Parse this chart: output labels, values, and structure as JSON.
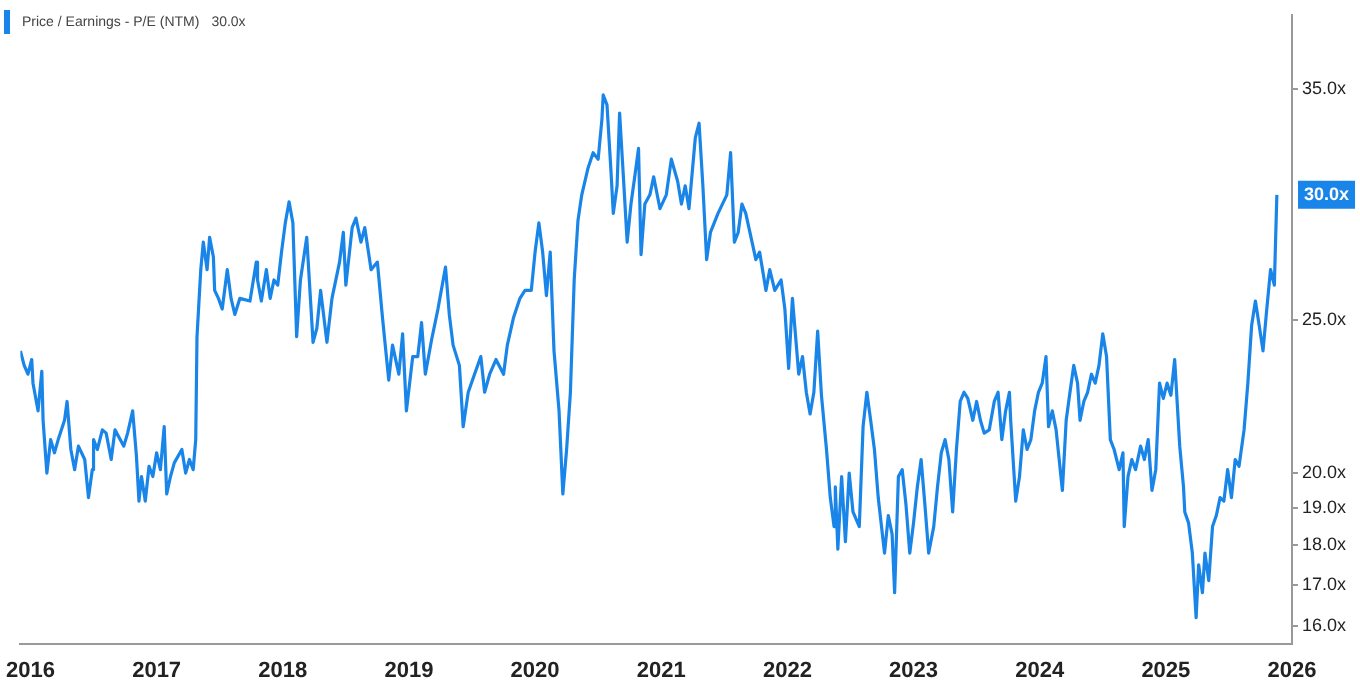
{
  "chart_data": {
    "type": "line",
    "legend": "top left",
    "log": "y",
    "grid": false,
    "xlim": [
      2015.92,
      2026
    ],
    "xticks": [
      2016,
      2017,
      2018,
      2019,
      2020,
      2021,
      2022,
      2023,
      2024,
      2025,
      2026
    ],
    "ylim": [
      15.6,
      39
    ],
    "yticks": [
      {
        "value": 16,
        "label": "16.0x"
      },
      {
        "value": 17,
        "label": "17.0x"
      },
      {
        "value": 18,
        "label": "18.0x"
      },
      {
        "value": 19,
        "label": "19.0x"
      },
      {
        "value": 20,
        "label": "20.0x"
      },
      {
        "value": 25,
        "label": "25.0x"
      },
      {
        "value": 35,
        "label": "35.0x"
      }
    ],
    "annotations": [
      "30.0x",
      {
        "text": "30.0x",
        "y": 30.0
      }
    ],
    "series": [
      {
        "name": "Price / Earnings - P/E (NTM)",
        "color": "#1a85e8",
        "x": [
          2015.92,
          2015.95,
          2015.98,
          2016.01,
          2016.02,
          2016.06,
          2016.09,
          2016.1,
          2016.13,
          2016.16,
          2016.19,
          2016.22,
          2016.27,
          2016.29,
          2016.32,
          2016.35,
          2016.38,
          2016.43,
          2016.46,
          2016.49,
          2016.5,
          2016.53,
          2016.57,
          2016.6,
          2016.64,
          2016.67,
          2016.74,
          2016.77,
          2016.81,
          2016.84,
          2016.86,
          2016.88,
          2016.91,
          2016.94,
          2016.97,
          2017.0,
          2017.03,
          2017.06,
          2017.08,
          2017.11,
          2017.14,
          2017.2,
          2017.23,
          2017.26,
          2017.29,
          2017.31,
          2017.32,
          2017.35,
          2017.37,
          2017.4,
          2017.42,
          2017.45,
          2017.46,
          2017.49,
          2017.52,
          2017.56,
          2017.59,
          2017.62,
          2017.66,
          2017.74,
          2017.79,
          2017.8,
          2017.83,
          2017.87,
          2017.9,
          2017.93,
          2017.96,
          2017.99,
          2018.02,
          2018.05,
          2018.08,
          2018.11,
          2018.14,
          2018.19,
          2018.24,
          2018.27,
          2018.3,
          2018.35,
          2018.39,
          2018.45,
          2018.48,
          2018.5,
          2018.55,
          2018.58,
          2018.62,
          2018.65,
          2018.7,
          2018.75,
          2018.79,
          2018.84,
          2018.87,
          2018.92,
          2018.95,
          2018.98,
          2019.03,
          2019.07,
          2019.1,
          2019.13,
          2019.18,
          2019.23,
          2019.29,
          2019.32,
          2019.35,
          2019.4,
          2019.43,
          2019.47,
          2019.52,
          2019.57,
          2019.6,
          2019.64,
          2019.69,
          2019.75,
          2019.78,
          2019.83,
          2019.88,
          2019.92,
          2019.97,
          2020.0,
          2020.03,
          2020.06,
          2020.09,
          2020.12,
          2020.15,
          2020.19,
          2020.22,
          2020.25,
          2020.28,
          2020.31,
          2020.34,
          2020.37,
          2020.42,
          2020.46,
          2020.5,
          2020.53,
          2020.54,
          2020.57,
          2020.6,
          2020.62,
          2020.65,
          2020.67,
          2020.7,
          2020.73,
          2020.76,
          2020.79,
          2020.82,
          2020.84,
          2020.87,
          2020.91,
          2020.94,
          2020.99,
          2021.04,
          2021.08,
          2021.13,
          2021.16,
          2021.19,
          2021.22,
          2021.27,
          2021.3,
          2021.33,
          2021.36,
          2021.39,
          2021.45,
          2021.52,
          2021.55,
          2021.58,
          2021.61,
          2021.64,
          2021.67,
          2021.72,
          2021.75,
          2021.78,
          2021.83,
          2021.86,
          2021.9,
          2021.95,
          2021.98,
          2022.01,
          2022.04,
          2022.09,
          2022.12,
          2022.15,
          2022.18,
          2022.21,
          2022.24,
          2022.27,
          2022.31,
          2022.34,
          2022.37,
          2022.38,
          2022.4,
          2022.43,
          2022.46,
          2022.49,
          2022.52,
          2022.57,
          2022.6,
          2022.63,
          2022.66,
          2022.69,
          2022.72,
          2022.77,
          2022.8,
          2022.83,
          2022.85,
          2022.88,
          2022.91,
          2022.94,
          2022.97,
          2023.0,
          2023.03,
          2023.06,
          2023.09,
          2023.12,
          2023.16,
          2023.19,
          2023.22,
          2023.25,
          2023.28,
          2023.31,
          2023.34,
          2023.37,
          2023.4,
          2023.43,
          2023.47,
          2023.5,
          2023.53,
          2023.56,
          2023.6,
          2023.64,
          2023.67,
          2023.7,
          2023.73,
          2023.76,
          2023.77,
          2023.81,
          2023.84,
          2023.87,
          2023.9,
          2023.93,
          2023.96,
          2023.99,
          2024.02,
          2024.05,
          2024.07,
          2024.1,
          2024.13,
          2024.18,
          2024.21,
          2024.24,
          2024.27,
          2024.3,
          2024.32,
          2024.35,
          2024.38,
          2024.41,
          2024.44,
          2024.47,
          2024.5,
          2024.53,
          2024.56,
          2024.59,
          2024.63,
          2024.66,
          2024.67,
          2024.7,
          2024.73,
          2024.76,
          2024.8,
          2024.83,
          2024.86,
          2024.89,
          2024.92,
          2024.95,
          2024.98,
          2025.01,
          2025.04,
          2025.07,
          2025.11,
          2025.14,
          2025.15,
          2025.18,
          2025.21,
          2025.24,
          2025.26,
          2025.29,
          2025.31,
          2025.34,
          2025.37,
          2025.4,
          2025.43,
          2025.46,
          2025.49,
          2025.52,
          2025.55,
          2025.58,
          2025.62,
          2025.65,
          2025.68,
          2025.71,
          2025.74,
          2025.77,
          2025.8,
          2025.83,
          2025.86,
          2025.88
        ],
        "values": [
          23.9,
          23.4,
          23.1,
          23.6,
          22.8,
          21.9,
          23.2,
          21.6,
          20.0,
          21.0,
          20.6,
          21.0,
          21.6,
          22.2,
          20.7,
          20.1,
          20.8,
          20.4,
          19.3,
          20.1,
          21.0,
          20.7,
          21.3,
          21.2,
          20.4,
          21.3,
          20.8,
          21.2,
          21.9,
          20.5,
          19.2,
          19.9,
          19.2,
          20.2,
          19.9,
          20.6,
          20.1,
          21.4,
          19.4,
          19.9,
          20.3,
          20.7,
          20.0,
          20.4,
          20.1,
          21.0,
          24.4,
          26.9,
          28.0,
          26.9,
          28.2,
          27.4,
          26.1,
          25.8,
          25.4,
          26.9,
          25.8,
          25.2,
          25.8,
          25.7,
          27.2,
          26.5,
          25.7,
          26.9,
          25.8,
          26.5,
          26.3,
          27.6,
          28.8,
          29.7,
          28.8,
          24.4,
          26.5,
          28.2,
          24.2,
          24.7,
          26.1,
          24.2,
          25.8,
          27.2,
          28.4,
          26.3,
          28.6,
          29.0,
          28.0,
          28.6,
          26.9,
          27.2,
          25.1,
          22.9,
          24.1,
          23.1,
          24.5,
          21.9,
          23.7,
          23.7,
          24.9,
          23.1,
          24.3,
          25.4,
          27.0,
          25.2,
          24.1,
          23.4,
          21.4,
          22.5,
          23.1,
          23.7,
          22.5,
          23.1,
          23.6,
          23.1,
          24.1,
          25.1,
          25.8,
          26.1,
          26.1,
          27.6,
          28.8,
          27.6,
          25.9,
          27.6,
          23.9,
          21.9,
          19.4,
          20.7,
          22.5,
          26.5,
          28.9,
          30.0,
          31.2,
          31.9,
          31.6,
          33.5,
          34.7,
          34.2,
          31.2,
          29.2,
          30.4,
          33.8,
          30.8,
          28.0,
          29.6,
          30.8,
          32.1,
          27.5,
          29.6,
          30.0,
          30.8,
          29.4,
          30.0,
          31.6,
          30.6,
          29.6,
          30.4,
          29.4,
          32.6,
          33.3,
          30.4,
          27.3,
          28.4,
          29.2,
          30.0,
          31.9,
          28.0,
          28.4,
          29.6,
          29.2,
          28.0,
          27.3,
          27.6,
          26.1,
          26.9,
          26.1,
          26.5,
          25.4,
          23.3,
          25.8,
          23.1,
          23.7,
          22.5,
          21.8,
          22.5,
          24.6,
          22.4,
          20.7,
          19.3,
          18.5,
          19.6,
          17.9,
          19.9,
          18.1,
          20.0,
          18.9,
          18.5,
          21.4,
          22.5,
          21.6,
          20.7,
          19.3,
          17.8,
          18.8,
          18.3,
          16.8,
          19.9,
          20.1,
          19.1,
          17.8,
          18.6,
          19.6,
          20.4,
          19.1,
          17.8,
          18.5,
          19.6,
          20.6,
          21.0,
          20.4,
          18.9,
          20.7,
          22.2,
          22.5,
          22.3,
          21.6,
          22.2,
          21.6,
          21.2,
          21.3,
          22.2,
          22.5,
          21.0,
          21.9,
          22.5,
          21.6,
          19.2,
          19.9,
          21.3,
          20.7,
          21.0,
          21.9,
          22.5,
          22.8,
          23.7,
          21.4,
          21.9,
          21.3,
          19.5,
          21.6,
          22.5,
          23.4,
          22.8,
          21.6,
          22.2,
          22.5,
          23.1,
          22.8,
          23.4,
          24.5,
          23.7,
          21.0,
          20.7,
          20.1,
          20.6,
          18.5,
          19.9,
          20.4,
          20.1,
          20.8,
          20.4,
          21.0,
          19.5,
          20.1,
          22.8,
          22.3,
          22.8,
          22.4,
          23.6,
          20.8,
          19.6,
          18.9,
          18.6,
          17.8,
          16.2,
          17.5,
          16.8,
          17.8,
          17.1,
          18.5,
          18.8,
          19.3,
          19.2,
          20.1,
          19.3,
          20.4,
          20.2,
          21.3,
          22.8,
          24.8,
          25.7,
          24.8,
          23.9,
          25.4,
          26.9,
          26.3,
          30.0
        ]
      }
    ]
  }
}
